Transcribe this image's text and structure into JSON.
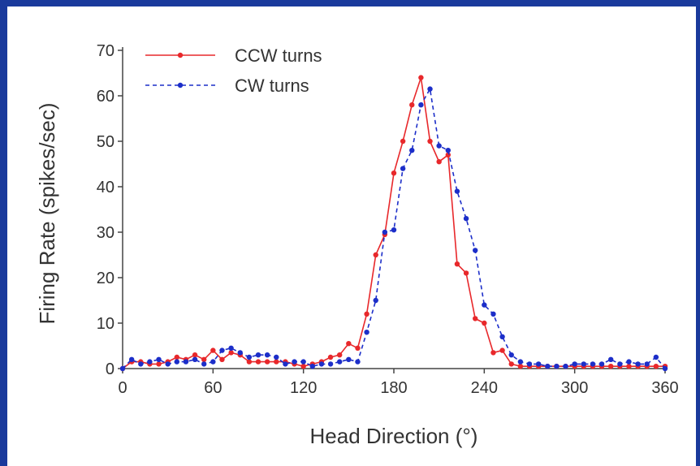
{
  "chart_data": {
    "type": "line",
    "title": "",
    "xlabel": "Head Direction (°)",
    "ylabel": "Firing Rate (spikes/sec)",
    "xlim": [
      0,
      360
    ],
    "ylim": [
      0,
      70
    ],
    "xticks": [
      0,
      60,
      120,
      180,
      240,
      300,
      360
    ],
    "yticks": [
      0,
      10,
      20,
      30,
      40,
      50,
      60,
      70
    ],
    "grid": false,
    "legend_position": "top-left",
    "series": [
      {
        "name": "CCW turns",
        "color": "#e8282b",
        "style": "solid",
        "x": [
          0,
          6,
          12,
          18,
          24,
          30,
          36,
          42,
          48,
          54,
          60,
          66,
          72,
          78,
          84,
          90,
          96,
          102,
          108,
          114,
          120,
          126,
          132,
          138,
          144,
          150,
          156,
          162,
          168,
          174,
          180,
          186,
          192,
          198,
          204,
          210,
          216,
          222,
          228,
          234,
          240,
          246,
          252,
          258,
          264,
          270,
          276,
          282,
          288,
          294,
          300,
          306,
          312,
          318,
          324,
          330,
          336,
          342,
          348,
          354,
          360
        ],
        "y": [
          0,
          1.5,
          1.5,
          1,
          1,
          1.5,
          2.5,
          2,
          3,
          2,
          4,
          2,
          3.5,
          3,
          1.5,
          1.5,
          1.5,
          1.5,
          1.5,
          1,
          0.5,
          1,
          1.5,
          2.5,
          3,
          5.5,
          4.5,
          12,
          25,
          29.5,
          43,
          50,
          58,
          64,
          50,
          45.5,
          47,
          23,
          21,
          11,
          10,
          3.5,
          4,
          1,
          0.5,
          0.5,
          0.5,
          0.5,
          0.5,
          0.5,
          0.5,
          0.5,
          0.5,
          0.5,
          0.5,
          0.5,
          0.5,
          0.5,
          0.5,
          0.5,
          0.5
        ]
      },
      {
        "name": "CW turns",
        "color": "#1c2ec9",
        "style": "dashed",
        "x": [
          0,
          6,
          12,
          18,
          24,
          30,
          36,
          42,
          48,
          54,
          60,
          66,
          72,
          78,
          84,
          90,
          96,
          102,
          108,
          114,
          120,
          126,
          132,
          138,
          144,
          150,
          156,
          162,
          168,
          174,
          180,
          186,
          192,
          198,
          204,
          210,
          216,
          222,
          228,
          234,
          240,
          246,
          252,
          258,
          264,
          270,
          276,
          282,
          288,
          294,
          300,
          306,
          312,
          318,
          324,
          330,
          336,
          342,
          348,
          354,
          360
        ],
        "y": [
          0,
          2,
          1,
          1.5,
          2,
          1,
          1.5,
          1.5,
          2,
          1,
          1.5,
          4,
          4.5,
          3.5,
          2.5,
          3,
          3,
          2.5,
          1,
          1.5,
          1.5,
          0.5,
          1,
          1,
          1.5,
          2,
          1.5,
          8,
          15,
          30,
          30.5,
          44,
          48,
          58,
          61.5,
          49,
          48,
          39,
          33,
          26,
          14,
          12,
          7,
          3,
          1.5,
          1,
          1,
          0.5,
          0.5,
          0.5,
          1,
          1,
          1,
          1,
          2,
          1,
          1.5,
          1,
          1,
          2.5,
          0
        ]
      }
    ]
  }
}
